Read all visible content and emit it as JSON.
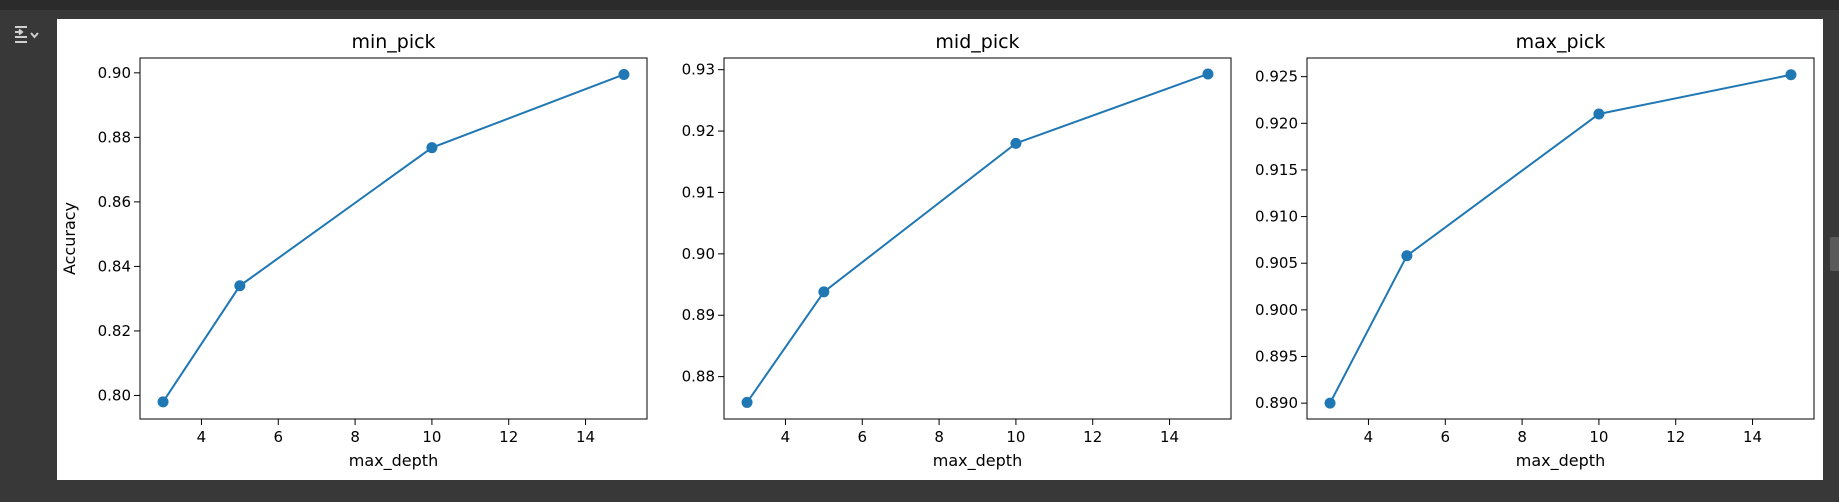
{
  "output_toggle": {
    "icon": "collapse-output-icon"
  },
  "colors": {
    "line": "#1f77b4",
    "axes": "#000000",
    "background": "#ffffff",
    "editor_bg": "#383838"
  },
  "chart_data": [
    {
      "type": "line",
      "title": "min_pick",
      "xlabel": "max_depth",
      "ylabel": "Accuracy",
      "x": [
        3,
        5,
        10,
        15
      ],
      "series": [
        {
          "values": [
            0.798,
            0.834,
            0.8768,
            0.8995
          ]
        }
      ],
      "xlim": [
        2.4,
        15.6
      ],
      "ylim": [
        0.7927,
        0.9046
      ],
      "xticks": [
        "4",
        "6",
        "8",
        "10",
        "12",
        "14"
      ],
      "yticks": [
        "0.80",
        "0.82",
        "0.84",
        "0.86",
        "0.88",
        "0.90"
      ],
      "grid": false,
      "marker": "circle"
    },
    {
      "type": "line",
      "title": "mid_pick",
      "xlabel": "max_depth",
      "ylabel": "",
      "x": [
        3,
        5,
        10,
        15
      ],
      "series": [
        {
          "values": [
            0.8758,
            0.8938,
            0.918,
            0.9293
          ]
        }
      ],
      "xlim": [
        2.4,
        15.6
      ],
      "ylim": [
        0.8731,
        0.9319
      ],
      "xticks": [
        "4",
        "6",
        "8",
        "10",
        "12",
        "14"
      ],
      "yticks": [
        "0.88",
        "0.89",
        "0.90",
        "0.91",
        "0.92",
        "0.93"
      ],
      "grid": false,
      "marker": "circle"
    },
    {
      "type": "line",
      "title": "max_pick",
      "xlabel": "max_depth",
      "ylabel": "",
      "x": [
        3,
        5,
        10,
        15
      ],
      "series": [
        {
          "values": [
            0.89,
            0.9058,
            0.921,
            0.9252
          ]
        }
      ],
      "xlim": [
        2.4,
        15.6
      ],
      "ylim": [
        0.8883,
        0.927
      ],
      "xticks": [
        "4",
        "6",
        "8",
        "10",
        "12",
        "14"
      ],
      "yticks": [
        "0.890",
        "0.895",
        "0.900",
        "0.905",
        "0.910",
        "0.915",
        "0.920",
        "0.925"
      ],
      "grid": false,
      "marker": "circle"
    }
  ]
}
